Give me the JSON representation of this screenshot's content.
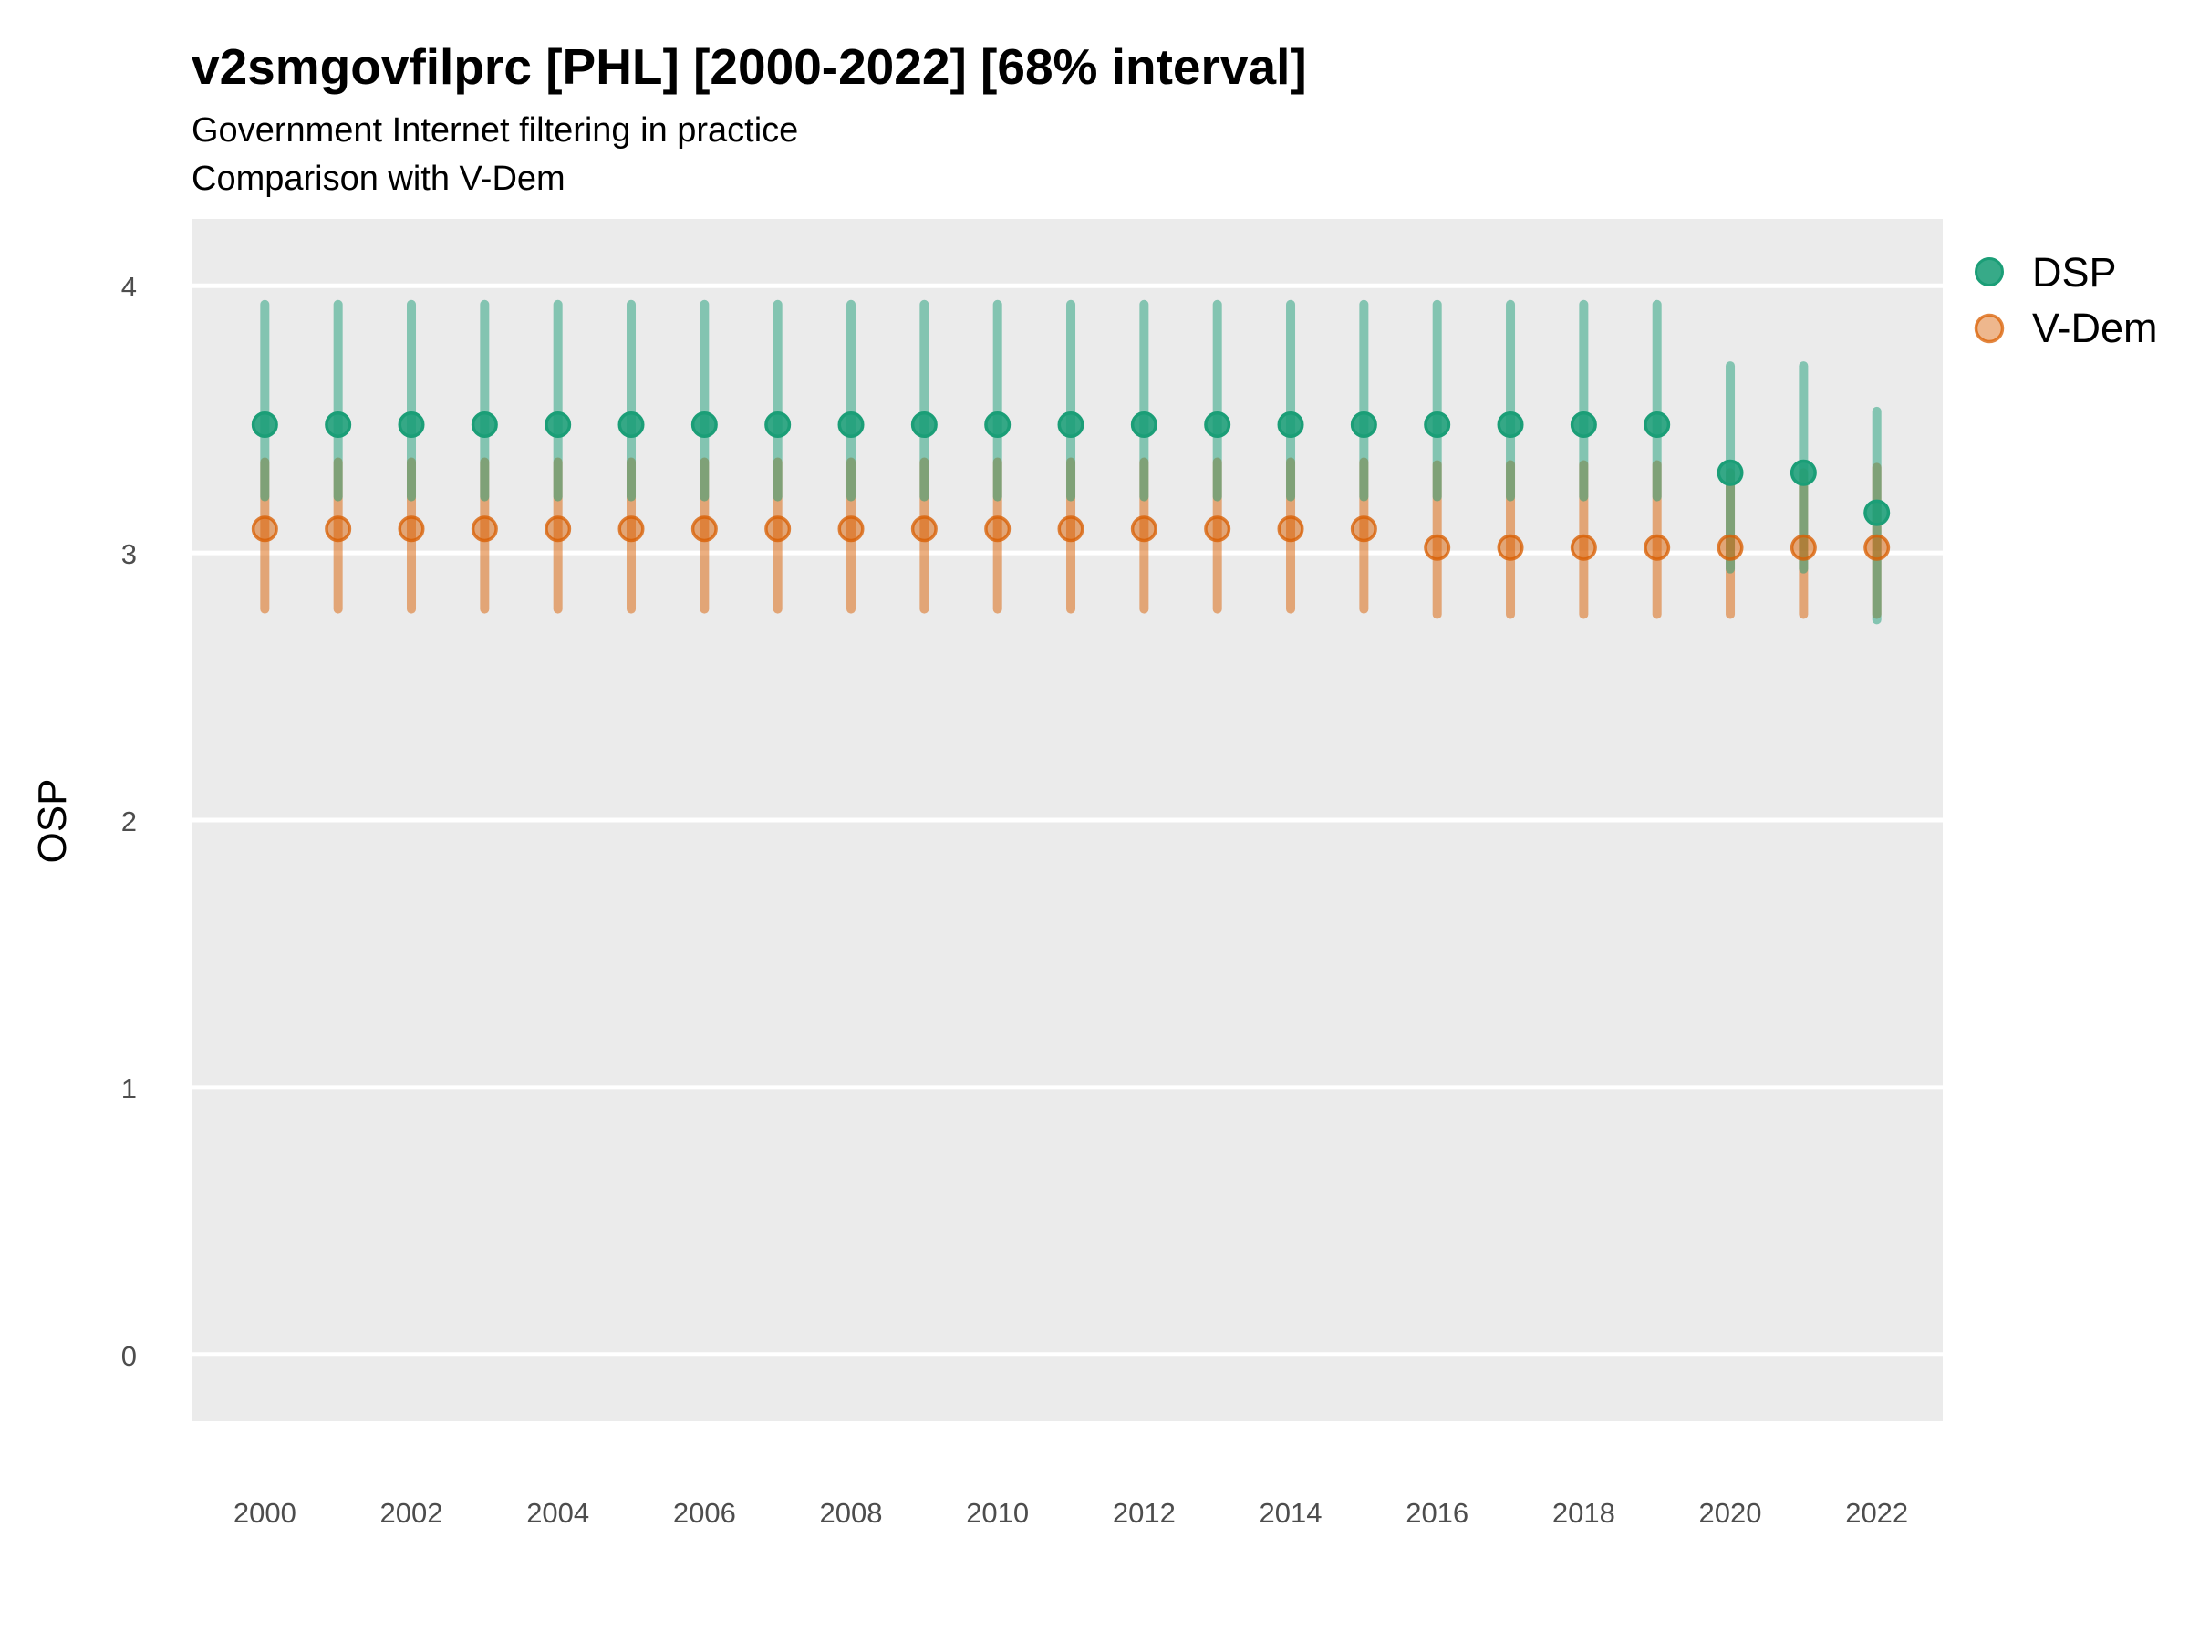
{
  "chart_data": {
    "type": "scatter",
    "title": "v2smgovfilprc [PHL] [2000-2022] [68% interval]",
    "subtitle1": "Government Internet filtering in practice",
    "subtitle2": "Comparison with V-Dem",
    "ylabel": "OSP",
    "xlabel": "",
    "interval_label": "68% interval",
    "legend_position": "right",
    "grid": "major-y-only",
    "plot_background": "#ebebeb",
    "gridline_color": "#ffffff",
    "ylim": [
      -0.25,
      4.25
    ],
    "xlim": [
      1999,
      2022.9
    ],
    "yticks": [
      0,
      1,
      2,
      3,
      4
    ],
    "xticks": [
      2000,
      2002,
      2004,
      2006,
      2008,
      2010,
      2012,
      2014,
      2016,
      2018,
      2020,
      2022
    ],
    "x": [
      2000,
      2001,
      2002,
      2003,
      2004,
      2005,
      2006,
      2007,
      2008,
      2009,
      2010,
      2011,
      2012,
      2013,
      2014,
      2015,
      2016,
      2017,
      2018,
      2019,
      2020,
      2021,
      2022
    ],
    "series": [
      {
        "name": "DSP",
        "color": "#1b9e77",
        "est": [
          3.48,
          3.48,
          3.48,
          3.48,
          3.48,
          3.48,
          3.48,
          3.48,
          3.48,
          3.48,
          3.48,
          3.48,
          3.48,
          3.48,
          3.48,
          3.48,
          3.48,
          3.48,
          3.48,
          3.48,
          3.3,
          3.3,
          3.15
        ],
        "lo": [
          3.21,
          3.21,
          3.21,
          3.21,
          3.21,
          3.21,
          3.21,
          3.21,
          3.21,
          3.21,
          3.21,
          3.21,
          3.21,
          3.21,
          3.21,
          3.21,
          3.21,
          3.21,
          3.21,
          3.21,
          2.94,
          2.94,
          2.75
        ],
        "hi": [
          3.93,
          3.93,
          3.93,
          3.93,
          3.93,
          3.93,
          3.93,
          3.93,
          3.93,
          3.93,
          3.93,
          3.93,
          3.93,
          3.93,
          3.93,
          3.93,
          3.93,
          3.93,
          3.93,
          3.93,
          3.7,
          3.7,
          3.53
        ]
      },
      {
        "name": "V-Dem",
        "color": "#d95f02",
        "est": [
          3.09,
          3.09,
          3.09,
          3.09,
          3.09,
          3.09,
          3.09,
          3.09,
          3.09,
          3.09,
          3.09,
          3.09,
          3.09,
          3.09,
          3.09,
          3.09,
          3.02,
          3.02,
          3.02,
          3.02,
          3.02,
          3.02,
          3.02
        ],
        "lo": [
          2.79,
          2.79,
          2.79,
          2.79,
          2.79,
          2.79,
          2.79,
          2.79,
          2.79,
          2.79,
          2.79,
          2.79,
          2.79,
          2.79,
          2.79,
          2.79,
          2.77,
          2.77,
          2.77,
          2.77,
          2.77,
          2.77,
          2.77
        ],
        "hi": [
          3.34,
          3.34,
          3.34,
          3.34,
          3.34,
          3.34,
          3.34,
          3.34,
          3.34,
          3.34,
          3.34,
          3.34,
          3.34,
          3.34,
          3.34,
          3.34,
          3.33,
          3.33,
          3.33,
          3.33,
          3.3,
          3.3,
          3.32
        ]
      }
    ]
  }
}
